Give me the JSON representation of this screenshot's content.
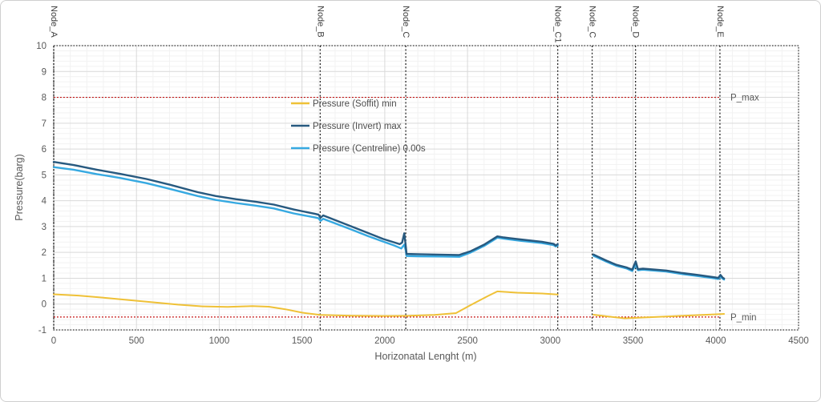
{
  "chart_data": {
    "type": "line",
    "title": "",
    "xlabel": "Horizonatal Lenght (m)",
    "ylabel": "Pressure(barg)",
    "xlim": [
      0,
      4500
    ],
    "ylim": [
      -1,
      10
    ],
    "x_tick_step": 500,
    "y_tick_step": 1,
    "x_minor_step": 100,
    "y_minor_step": 0.2,
    "grid": true,
    "legend_position": "upper-left-inside",
    "reference_lines": [
      {
        "label": "P_max",
        "value": 8,
        "x_start": 0,
        "x_end": 4025,
        "color": "#C00000"
      },
      {
        "label": "P_min",
        "value": -0.5,
        "x_start": 0,
        "x_end": 4025,
        "color": "#C00000"
      }
    ],
    "node_lines": [
      {
        "label": "Node_A",
        "x": 0
      },
      {
        "label": "Node_B",
        "x": 1610
      },
      {
        "label": "Node_C",
        "x": 2127
      },
      {
        "label": "Node_C1",
        "x": 3045
      },
      {
        "label": "Node_C",
        "x": 3253
      },
      {
        "label": "Node_D",
        "x": 3515
      },
      {
        "label": "Node_E",
        "x": 4025
      }
    ],
    "series": [
      {
        "name": "Pressure (Soffit) min",
        "color": "#EFC137",
        "width": 2,
        "segments": [
          [
            [
              0,
              0.38
            ],
            [
              150,
              0.33
            ],
            [
              300,
              0.25
            ],
            [
              450,
              0.16
            ],
            [
              600,
              0.07
            ],
            [
              750,
              -0.02
            ],
            [
              900,
              -0.09
            ],
            [
              1050,
              -0.11
            ],
            [
              1200,
              -0.08
            ],
            [
              1300,
              -0.1
            ],
            [
              1400,
              -0.2
            ],
            [
              1500,
              -0.33
            ],
            [
              1610,
              -0.42
            ],
            [
              1800,
              -0.45
            ],
            [
              2000,
              -0.46
            ],
            [
              2150,
              -0.45
            ],
            [
              2300,
              -0.42
            ],
            [
              2430,
              -0.35
            ],
            [
              2530,
              0.0
            ],
            [
              2620,
              0.3
            ],
            [
              2680,
              0.49
            ],
            [
              2800,
              0.44
            ],
            [
              2950,
              0.41
            ],
            [
              3045,
              0.37
            ]
          ],
          [
            [
              3261,
              -0.41
            ],
            [
              3350,
              -0.48
            ],
            [
              3450,
              -0.55
            ],
            [
              3560,
              -0.52
            ],
            [
              3700,
              -0.48
            ],
            [
              3850,
              -0.44
            ],
            [
              3990,
              -0.4
            ],
            [
              4050,
              -0.38
            ]
          ]
        ]
      },
      {
        "name": "Pressure (Centreline) 0.00s",
        "color": "#36A9E1",
        "width": 2.4,
        "segments": [
          [
            [
              0,
              5.3
            ],
            [
              120,
              5.2
            ],
            [
              260,
              5.03
            ],
            [
              400,
              4.88
            ],
            [
              560,
              4.68
            ],
            [
              700,
              4.46
            ],
            [
              870,
              4.18
            ],
            [
              980,
              4.03
            ],
            [
              1100,
              3.91
            ],
            [
              1220,
              3.81
            ],
            [
              1330,
              3.7
            ],
            [
              1450,
              3.51
            ],
            [
              1580,
              3.35
            ],
            [
              1600,
              3.32
            ],
            [
              1612,
              3.22
            ],
            [
              1628,
              3.3
            ],
            [
              1800,
              2.88
            ],
            [
              1900,
              2.63
            ],
            [
              1990,
              2.42
            ],
            [
              2060,
              2.26
            ],
            [
              2100,
              2.15
            ],
            [
              2118,
              2.3
            ],
            [
              2126,
              2.1
            ],
            [
              2132,
              1.86
            ],
            [
              2200,
              1.85
            ],
            [
              2350,
              1.84
            ],
            [
              2450,
              1.83
            ],
            [
              2520,
              2.0
            ],
            [
              2600,
              2.25
            ],
            [
              2680,
              2.57
            ],
            [
              2720,
              2.53
            ],
            [
              2820,
              2.45
            ],
            [
              2950,
              2.36
            ],
            [
              3020,
              2.28
            ],
            [
              3033,
              2.23
            ],
            [
              3045,
              2.27
            ]
          ],
          [
            [
              3261,
              1.87
            ],
            [
              3290,
              1.79
            ],
            [
              3340,
              1.64
            ],
            [
              3400,
              1.48
            ],
            [
              3460,
              1.38
            ],
            [
              3495,
              1.28
            ],
            [
              3516,
              1.52
            ],
            [
              3530,
              1.31
            ],
            [
              3560,
              1.33
            ],
            [
              3700,
              1.26
            ],
            [
              3800,
              1.16
            ],
            [
              3900,
              1.08
            ],
            [
              3990,
              1.0
            ],
            [
              4015,
              0.97
            ],
            [
              4028,
              1.06
            ],
            [
              4042,
              0.98
            ],
            [
              4050,
              0.95
            ]
          ]
        ]
      },
      {
        "name": "Pressure (Invert) max",
        "color": "#27597F",
        "width": 2.4,
        "segments": [
          [
            [
              0,
              5.5
            ],
            [
              120,
              5.38
            ],
            [
              260,
              5.2
            ],
            [
              400,
              5.04
            ],
            [
              560,
              4.84
            ],
            [
              700,
              4.62
            ],
            [
              870,
              4.33
            ],
            [
              980,
              4.18
            ],
            [
              1100,
              4.06
            ],
            [
              1220,
              3.96
            ],
            [
              1330,
              3.85
            ],
            [
              1450,
              3.66
            ],
            [
              1580,
              3.49
            ],
            [
              1600,
              3.46
            ],
            [
              1612,
              3.34
            ],
            [
              1628,
              3.43
            ],
            [
              1800,
              3.0
            ],
            [
              1900,
              2.75
            ],
            [
              1990,
              2.52
            ],
            [
              2060,
              2.38
            ],
            [
              2090,
              2.32
            ],
            [
              2105,
              2.38
            ],
            [
              2118,
              2.74
            ],
            [
              2126,
              2.3
            ],
            [
              2132,
              1.94
            ],
            [
              2200,
              1.93
            ],
            [
              2350,
              1.91
            ],
            [
              2450,
              1.9
            ],
            [
              2520,
              2.05
            ],
            [
              2600,
              2.3
            ],
            [
              2680,
              2.62
            ],
            [
              2720,
              2.58
            ],
            [
              2820,
              2.5
            ],
            [
              2950,
              2.41
            ],
            [
              3020,
              2.33
            ],
            [
              3033,
              2.27
            ],
            [
              3045,
              2.32
            ]
          ],
          [
            [
              3261,
              1.92
            ],
            [
              3290,
              1.83
            ],
            [
              3340,
              1.68
            ],
            [
              3400,
              1.52
            ],
            [
              3460,
              1.42
            ],
            [
              3495,
              1.33
            ],
            [
              3516,
              1.65
            ],
            [
              3530,
              1.35
            ],
            [
              3560,
              1.37
            ],
            [
              3700,
              1.3
            ],
            [
              3800,
              1.2
            ],
            [
              3900,
              1.12
            ],
            [
              3990,
              1.04
            ],
            [
              4015,
              1.01
            ],
            [
              4028,
              1.13
            ],
            [
              4042,
              1.02
            ],
            [
              4050,
              0.99
            ]
          ]
        ]
      }
    ],
    "legend_order": [
      "Pressure (Soffit) min",
      "Pressure (Invert) max",
      "Pressure (Centreline) 0.00s"
    ]
  },
  "colors": {
    "grid_major": "#d9d9d9",
    "grid_minor": "#f2f2f2",
    "plot_border": "#333333",
    "node_line": "#262626",
    "reference": "#C00000",
    "axis_text": "#595959"
  }
}
